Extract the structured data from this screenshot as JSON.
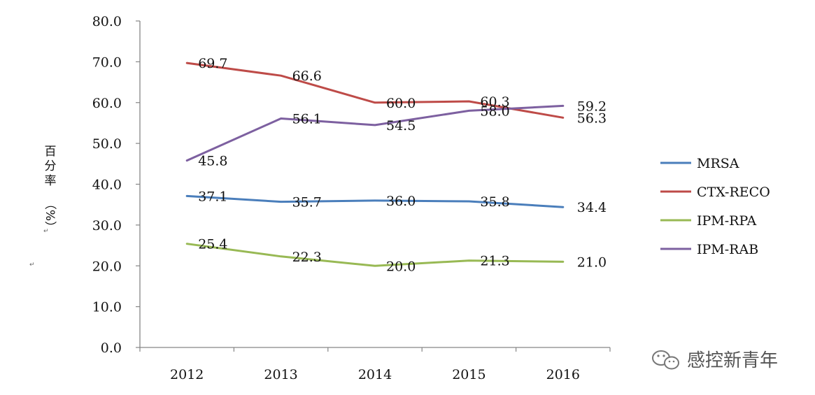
{
  "chart_data": {
    "type": "line",
    "categories": [
      "2012",
      "2013",
      "2014",
      "2015",
      "2016"
    ],
    "ylim": [
      0,
      80
    ],
    "y_ticks": [
      "0.0",
      "10.0",
      "20.0",
      "30.0",
      "40.0",
      "50.0",
      "60.0",
      "70.0",
      "80.0"
    ],
    "ylabel_chars": [
      "百",
      "分",
      "率",
      "（%）"
    ],
    "ylabel_marks": [
      "↵",
      "↵"
    ],
    "legend_position": "right",
    "grid": false,
    "series": [
      {
        "name": "MRSA",
        "color": "#4a7ebb",
        "values": [
          37.1,
          35.7,
          36.0,
          35.8,
          34.4
        ],
        "labels": [
          "37.1",
          "35.7",
          "36.0",
          "35.8",
          "34.4"
        ]
      },
      {
        "name": "CTX-RECO",
        "color": "#be4b48",
        "values": [
          69.7,
          66.6,
          60.0,
          60.3,
          56.3
        ],
        "labels": [
          "69.7",
          "66.6",
          "60.0",
          "60.3",
          "56.3"
        ]
      },
      {
        "name": "IPM-RPA",
        "color": "#98b954",
        "values": [
          25.4,
          22.3,
          20.0,
          21.3,
          21.0
        ],
        "labels": [
          "25.4",
          "22.3",
          "20.0",
          "21.3",
          "21.0"
        ]
      },
      {
        "name": "IPM-RAB",
        "color": "#7d60a0",
        "values": [
          45.8,
          56.1,
          54.5,
          58.0,
          59.2
        ],
        "labels": [
          "45.8",
          "56.1",
          "54.5",
          "58.0",
          "59.2"
        ]
      }
    ]
  },
  "watermark": {
    "text": "感控新青年",
    "icon": "wechat-icon"
  }
}
